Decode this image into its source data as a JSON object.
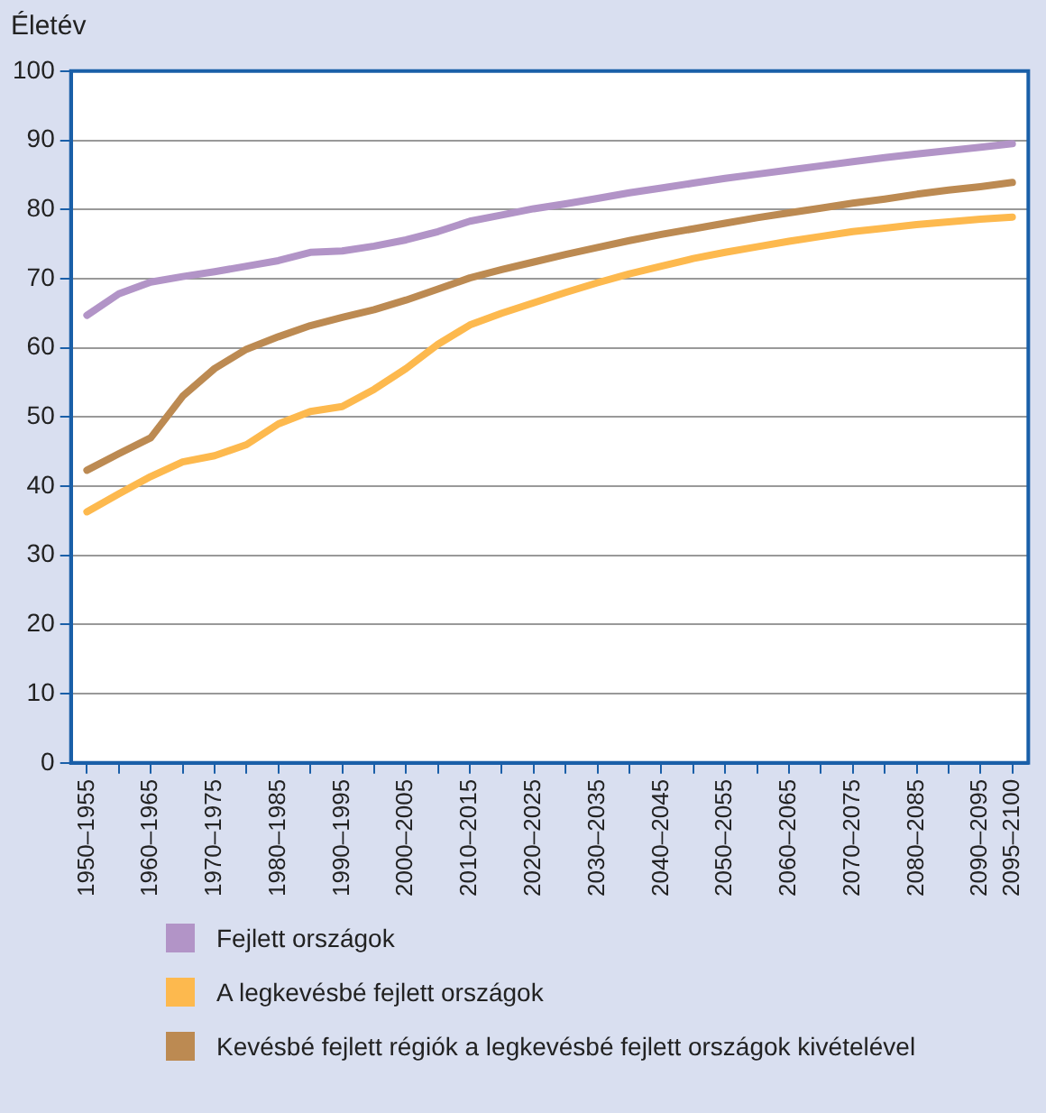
{
  "chart_data": {
    "type": "line",
    "ylabel": "Életév",
    "categories": [
      "1950–1955",
      null,
      "1960–1965",
      null,
      "1970–1975",
      null,
      "1980–1985",
      null,
      "1990–1995",
      null,
      "2000–2005",
      null,
      "2010–2015",
      null,
      "2020–2025",
      null,
      "2030–2035",
      null,
      "2040–2045",
      null,
      "2050–2055",
      null,
      "2060–2065",
      null,
      "2070–2075",
      null,
      "2080–2085",
      null,
      "2090–2095",
      "2095–2100"
    ],
    "series": [
      {
        "name": "Fejlett országok",
        "color": "#b294c7",
        "values": [
          64.7,
          67.8,
          69.5,
          70.3,
          71,
          71.8,
          72.6,
          73.8,
          74,
          74.7,
          75.6,
          76.8,
          78.3,
          79.2,
          80.1,
          80.8,
          81.6,
          82.4,
          83.1,
          83.8,
          84.5,
          85.1,
          85.7,
          86.3,
          86.9,
          87.5,
          88.0,
          88.5,
          89.0,
          89.5
        ]
      },
      {
        "name": "A  legkevésbé fejlett országok",
        "color": "#fdb94e",
        "values": [
          36.3,
          38.9,
          41.4,
          43.5,
          44.4,
          46,
          49,
          50.8,
          51.5,
          54,
          57,
          60.5,
          63.3,
          65,
          66.5,
          68,
          69.4,
          70.7,
          71.8,
          72.9,
          73.8,
          74.6,
          75.4,
          76.1,
          76.8,
          77.3,
          77.8,
          78.2,
          78.6,
          78.9
        ]
      },
      {
        "name": "Kevésbé fejlett régiók a legkevésbé fejlett országok kivételével",
        "color": "#bc8a52",
        "values": [
          42.3,
          44.7,
          47,
          53,
          57,
          59.8,
          61.6,
          63.2,
          64.4,
          65.5,
          66.9,
          68.5,
          70.1,
          71.3,
          72.4,
          73.5,
          74.5,
          75.5,
          76.4,
          77.2,
          78,
          78.8,
          79.5,
          80.2,
          80.9,
          81.5,
          82.2,
          82.8,
          83.3,
          83.9
        ]
      }
    ],
    "ylim": [
      0,
      100
    ],
    "yticks": [
      0,
      10,
      20,
      30,
      40,
      50,
      60,
      70,
      80,
      90,
      100
    ],
    "grid": "y",
    "legend": "bottom",
    "marker": "none",
    "line_style": "solid"
  }
}
